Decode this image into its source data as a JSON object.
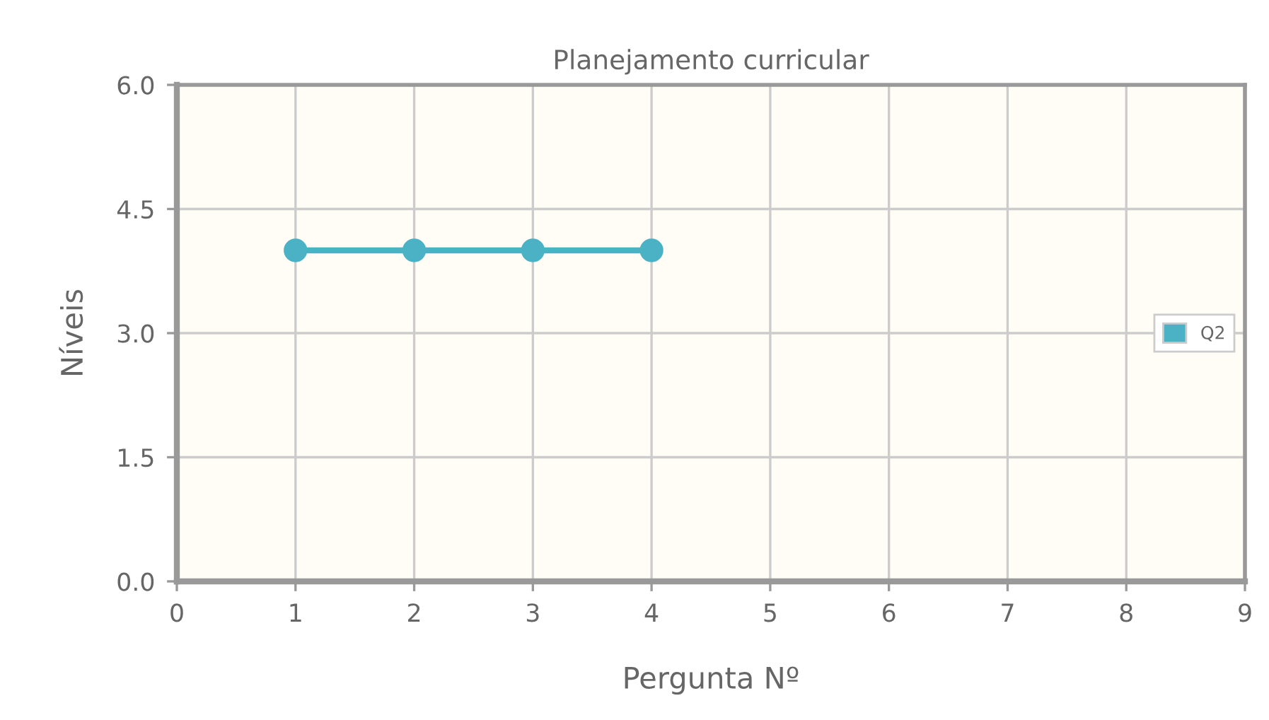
{
  "chart_data": {
    "type": "line",
    "title": "Planejamento curricular",
    "xlabel": "Pergunta Nº",
    "ylabel": "Níveis",
    "x": [
      1,
      2,
      3,
      4
    ],
    "series": [
      {
        "name": "Q2",
        "color": "#4bb2c5",
        "values": [
          4,
          4,
          4,
          4
        ]
      }
    ],
    "xlim": [
      0,
      9
    ],
    "xticks": [
      0,
      1,
      2,
      3,
      4,
      5,
      6,
      7,
      8,
      9
    ],
    "ylim": [
      0,
      6
    ],
    "yticks": [
      {
        "value": 0,
        "label": "0.0"
      },
      1.5,
      {
        "value": 3,
        "label": "3.0"
      },
      4.5,
      {
        "value": 6,
        "label": "6.0"
      }
    ],
    "grid": true,
    "legend": "right",
    "marker": "circle",
    "line_style": "solid"
  }
}
